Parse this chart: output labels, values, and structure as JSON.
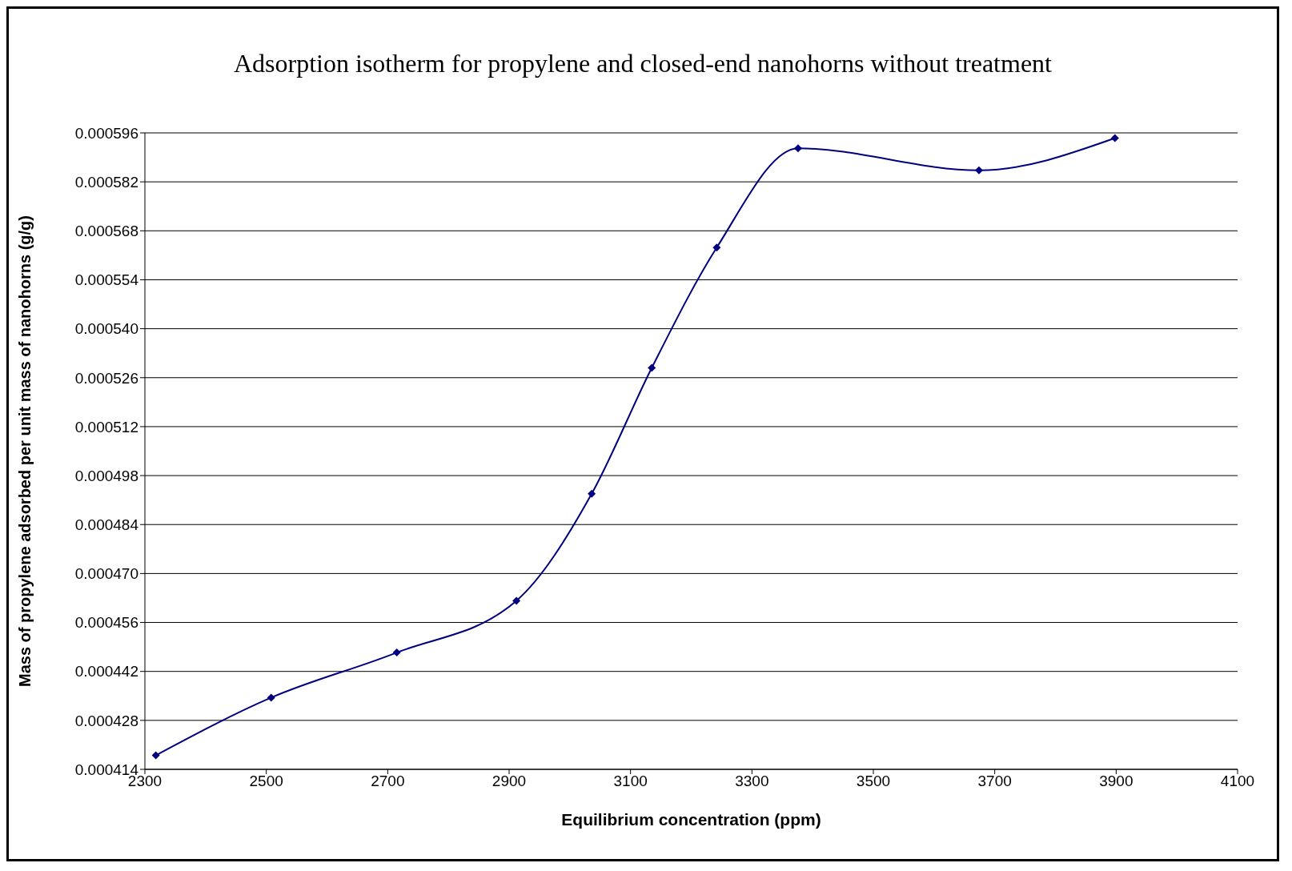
{
  "chart_data": {
    "type": "line",
    "title": "Adsorption isotherm for propylene and closed-end nanohorns without treatment",
    "xlabel": "Equilibrium concentration (ppm)",
    "ylabel": "Mass of propylene adsorbed per unit mass of nanohorns (g/g)",
    "x": [
      2318,
      2508,
      2715,
      2912,
      3036,
      3135,
      3242,
      3376,
      3674,
      3898
    ],
    "series": [
      {
        "color": "#000080",
        "values": [
          0.000418,
          0.0004345,
          0.0004474,
          0.0004622,
          0.0004928,
          0.0005288,
          0.0005632,
          0.0005916,
          0.0005853,
          0.0005945
        ]
      }
    ],
    "xlim": [
      2300,
      4100
    ],
    "xticks": [
      2300,
      2500,
      2700,
      2900,
      3100,
      3300,
      3500,
      3700,
      3900,
      4100
    ],
    "ylim": [
      0.000414,
      0.000596
    ],
    "yticks": [
      {
        "value": 0.000414,
        "label": "0.000414"
      },
      {
        "value": 0.000428,
        "label": "0.000428"
      },
      {
        "value": 0.000442,
        "label": "0.000442"
      },
      {
        "value": 0.000456,
        "label": "0.000456"
      },
      {
        "value": 0.00047,
        "label": "0.000470"
      },
      {
        "value": 0.000484,
        "label": "0.000484"
      },
      {
        "value": 0.000498,
        "label": "0.000498"
      },
      {
        "value": 0.000512,
        "label": "0.000512"
      },
      {
        "value": 0.000526,
        "label": "0.000526"
      },
      {
        "value": 0.00054,
        "label": "0.000540"
      },
      {
        "value": 0.000554,
        "label": "0.000554"
      },
      {
        "value": 0.000568,
        "label": "0.000568"
      },
      {
        "value": 0.000582,
        "label": "0.000582"
      },
      {
        "value": 0.000596,
        "label": "0.000596"
      }
    ],
    "grid": "y",
    "marker": "diamond",
    "line_style": "solid",
    "legend": false
  }
}
